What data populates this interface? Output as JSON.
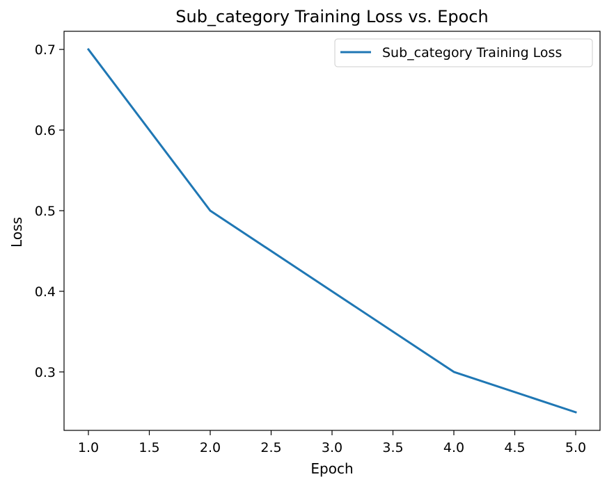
{
  "chart_data": {
    "type": "line",
    "title": "Sub_category Training Loss vs. Epoch",
    "xlabel": "Epoch",
    "ylabel": "Loss",
    "xlim": [
      0.8,
      5.2
    ],
    "ylim": [
      0.2275,
      0.7225
    ],
    "x_ticks": [
      1.0,
      1.5,
      2.0,
      2.5,
      3.0,
      3.5,
      4.0,
      4.5,
      5.0
    ],
    "x_tick_labels": [
      "1.0",
      "1.5",
      "2.0",
      "2.5",
      "3.0",
      "3.5",
      "4.0",
      "4.5",
      "5.0"
    ],
    "y_ticks": [
      0.3,
      0.4,
      0.5,
      0.6,
      0.7
    ],
    "y_tick_labels": [
      "0.3",
      "0.4",
      "0.5",
      "0.6",
      "0.7"
    ],
    "grid": false,
    "legend_position": "top-right",
    "series": [
      {
        "name": "Sub_category Training Loss",
        "color": "#1f77b4",
        "x": [
          1,
          2,
          3,
          4,
          5
        ],
        "y": [
          0.7,
          0.5,
          0.4,
          0.3,
          0.25
        ]
      }
    ]
  }
}
